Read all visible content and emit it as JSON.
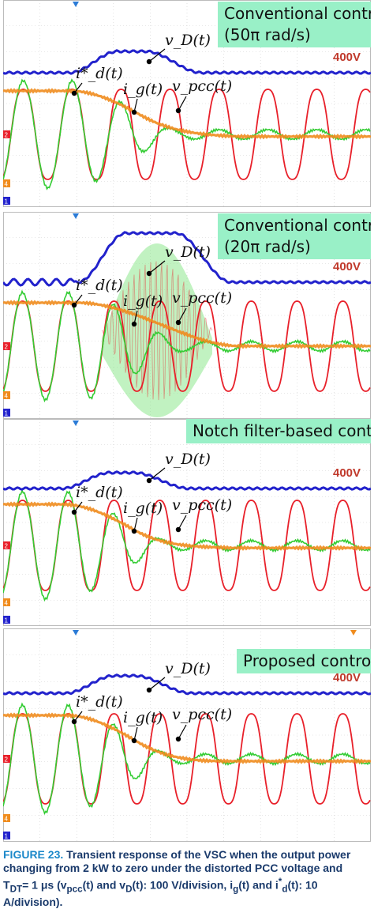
{
  "figure": {
    "panels": [
      {
        "title_line1": "Conventional control",
        "title_line2": "(50π  rad/s)",
        "voltage_label": "400V",
        "labels": {
          "vD": "v_D(t)",
          "id": "i*_d(t)",
          "ig": "i_g(t)",
          "vpcc": "v_pcc(t)"
        }
      },
      {
        "title_line1": "Conventional control",
        "title_line2": "(20π  rad/s)",
        "voltage_label": "400V",
        "labels": {
          "vD": "v_D(t)",
          "id": "i*_d(t)",
          "ig": "i_g(t)",
          "vpcc": "v_pcc(t)"
        }
      },
      {
        "title_line1": "Notch filter-based control",
        "title_line2": "",
        "voltage_label": "400V",
        "labels": {
          "vD": "v_D(t)",
          "id": "i*_d(t)",
          "ig": "i_g(t)",
          "vpcc": "v_pcc(t)"
        }
      },
      {
        "title_line1": "Proposed control",
        "title_line2": "",
        "voltage_label": "400V",
        "labels": {
          "vD": "v_D(t)",
          "id": "i*_d(t)",
          "ig": "i_g(t)",
          "vpcc": "v_pcc(t)"
        }
      }
    ],
    "channel_markers": [
      "1",
      "2",
      "4"
    ],
    "colors": {
      "vD": "#2222cc",
      "vpcc": "#e8202a",
      "ig": "#33cc33",
      "id": "#f08c1e",
      "title_bg": "#99f0c7"
    },
    "caption": {
      "figure_no": "FIGURE 23.",
      "text": "Transient response of the VSC when the output power changing from 2 kW to zero under the distorted PCC voltage and T",
      "tdt_sub": "DT",
      "text2": "= 1 μs (v",
      "pcc_sub": "pcc",
      "text3": "(t) and v",
      "d_sub": "D",
      "text4": "(t): 100 V/division, i",
      "g_sub": "g",
      "text5": "(t) and i",
      "star": "*",
      "d2_sub": "d",
      "text6": "(t): 10 A/division)."
    }
  }
}
